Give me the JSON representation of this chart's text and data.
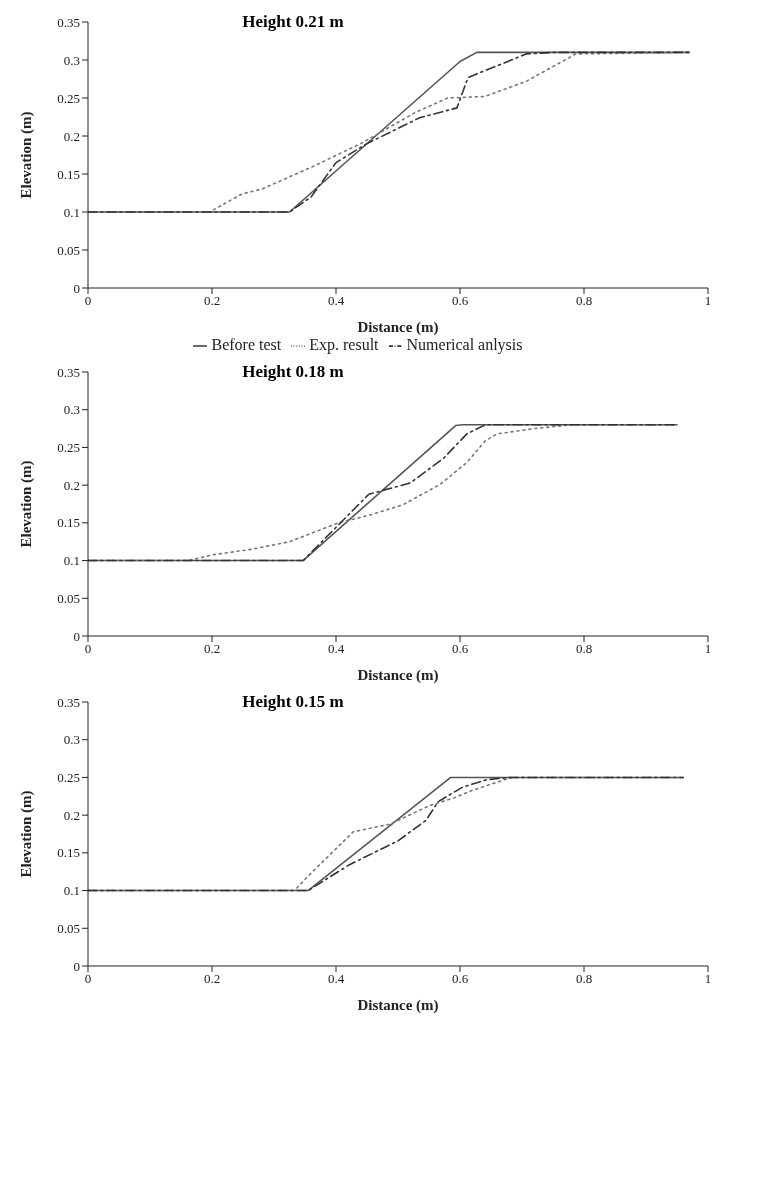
{
  "chart_data": [
    {
      "type": "line",
      "title": "Height 0.21 m",
      "xlabel": "Distance (m)",
      "ylabel": "Elevation (m)",
      "xlim": [
        0,
        1
      ],
      "xticks": [
        0,
        0.2,
        0.4,
        0.6,
        0.8,
        1
      ],
      "ylim": [
        0,
        0.35
      ],
      "yticks": [
        0,
        0.05,
        0.1,
        0.15,
        0.2,
        0.25,
        0.3,
        0.35
      ],
      "grid": false,
      "legend": "bottom",
      "marker": "none",
      "series": [
        {
          "name": "Before test",
          "color": "#555555",
          "line_style": "solid",
          "x": [
            0,
            0.325,
            0.6,
            0.627,
            0.97
          ],
          "values": [
            0.1,
            0.1,
            0.298,
            0.31,
            0.31
          ]
        },
        {
          "name": "Exp. result",
          "color": "#777777",
          "line_style": "dotted",
          "x": [
            0,
            0.196,
            0.249,
            0.28,
            0.363,
            0.44,
            0.528,
            0.58,
            0.64,
            0.707,
            0.787,
            0.97
          ],
          "values": [
            0.1,
            0.1,
            0.124,
            0.13,
            0.16,
            0.19,
            0.231,
            0.25,
            0.252,
            0.272,
            0.308,
            0.31
          ]
        },
        {
          "name": "Numerical anlysis",
          "color": "#333333",
          "line_style": "dashed",
          "x": [
            0,
            0.325,
            0.36,
            0.4,
            0.45,
            0.535,
            0.595,
            0.613,
            0.707,
            0.75,
            0.97
          ],
          "values": [
            0.1,
            0.1,
            0.12,
            0.165,
            0.19,
            0.224,
            0.237,
            0.277,
            0.308,
            0.31,
            0.31
          ]
        }
      ]
    },
    {
      "type": "line",
      "title": "Height 0.18 m",
      "xlabel": "Distance (m)",
      "ylabel": "Elevation (m)",
      "xlim": [
        0,
        1
      ],
      "xticks": [
        0,
        0.2,
        0.4,
        0.6,
        0.8,
        1
      ],
      "ylim": [
        0,
        0.35
      ],
      "yticks": [
        0,
        0.05,
        0.1,
        0.15,
        0.2,
        0.25,
        0.3,
        0.35
      ],
      "grid": false,
      "legend": false,
      "marker": "none",
      "series": [
        {
          "color": "#555555",
          "line_style": "solid",
          "x": [
            0,
            0.347,
            0.593,
            0.605,
            0.95
          ],
          "values": [
            0.1,
            0.1,
            0.279,
            0.28,
            0.28
          ]
        },
        {
          "color": "#777777",
          "line_style": "dotted",
          "x": [
            0,
            0.16,
            0.204,
            0.264,
            0.325,
            0.404,
            0.453,
            0.508,
            0.568,
            0.611,
            0.641,
            0.66,
            0.72,
            0.78,
            0.95
          ],
          "values": [
            0.1,
            0.1,
            0.108,
            0.115,
            0.125,
            0.15,
            0.16,
            0.174,
            0.201,
            0.23,
            0.259,
            0.268,
            0.275,
            0.28,
            0.28
          ]
        },
        {
          "color": "#333333",
          "line_style": "dashed",
          "x": [
            0,
            0.347,
            0.453,
            0.52,
            0.574,
            0.611,
            0.641,
            0.95
          ],
          "values": [
            0.1,
            0.1,
            0.188,
            0.203,
            0.236,
            0.268,
            0.28,
            0.28
          ]
        }
      ]
    },
    {
      "type": "line",
      "title": "Height 0.15 m",
      "xlabel": "Distance (m)",
      "ylabel": "Elevation (m)",
      "xlim": [
        0,
        1
      ],
      "xticks": [
        0,
        0.2,
        0.4,
        0.6,
        0.8,
        1
      ],
      "ylim": [
        0,
        0.35
      ],
      "yticks": [
        0,
        0.05,
        0.1,
        0.15,
        0.2,
        0.25,
        0.3,
        0.35
      ],
      "grid": false,
      "legend": false,
      "marker": "none",
      "series": [
        {
          "color": "#555555",
          "line_style": "solid",
          "x": [
            0,
            0.355,
            0.585,
            0.96
          ],
          "values": [
            0.1,
            0.1,
            0.25,
            0.25
          ]
        },
        {
          "color": "#777777",
          "line_style": "dotted",
          "x": [
            0,
            0.333,
            0.356,
            0.428,
            0.487,
            0.552,
            0.591,
            0.617,
            0.683,
            0.96
          ],
          "values": [
            0.1,
            0.1,
            0.12,
            0.178,
            0.188,
            0.213,
            0.223,
            0.232,
            0.25,
            0.25
          ]
        },
        {
          "color": "#333333",
          "line_style": "dashed",
          "x": [
            0,
            0.355,
            0.421,
            0.5,
            0.545,
            0.565,
            0.604,
            0.643,
            0.683,
            0.96
          ],
          "values": [
            0.1,
            0.1,
            0.134,
            0.166,
            0.193,
            0.218,
            0.237,
            0.247,
            0.25,
            0.25
          ]
        }
      ]
    }
  ]
}
